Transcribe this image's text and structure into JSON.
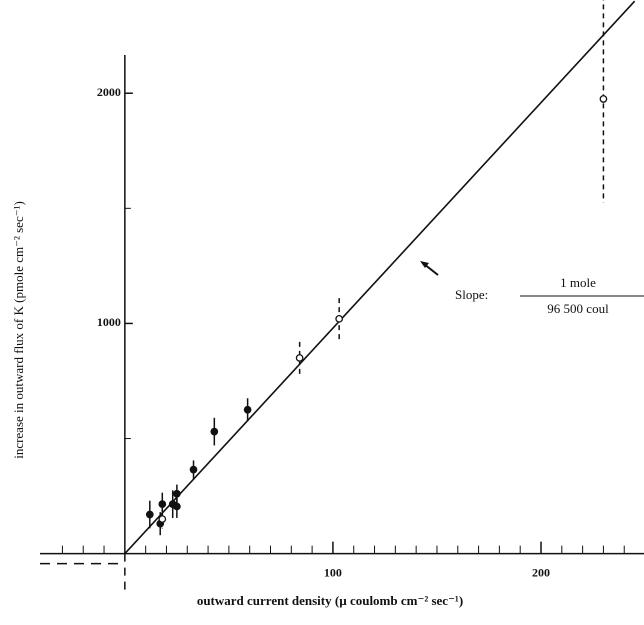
{
  "chart_data": {
    "type": "scatter",
    "x_label": "outward current density (µ coulomb cm⁻² sec⁻¹)",
    "y_label": "increase in outward flux of K (pmole cm⁻² sec⁻¹)",
    "annotation": {
      "text": "Slope:",
      "numerator": "1 mole",
      "denominator": "96 500 coul"
    },
    "xlim": [
      -60,
      249.5
    ],
    "ylim": [
      -310,
      2405
    ],
    "xticks": [
      100,
      200
    ],
    "yticks": [
      1000,
      2000
    ],
    "xminor": [
      -30,
      -20,
      -10,
      10,
      20,
      30,
      40,
      50,
      60,
      70,
      80,
      90,
      110,
      120,
      130,
      140,
      150,
      160,
      170,
      180,
      190,
      210,
      220,
      230,
      240
    ],
    "yminor": [
      500,
      1500
    ],
    "line": {
      "x": [
        0,
        245
      ],
      "values": [
        0,
        2400
      ],
      "color": "#111"
    },
    "series": [
      {
        "marker": "filled",
        "color": "#111",
        "dashed_errors": false,
        "x": [
          12,
          17,
          18,
          23,
          25,
          25,
          33,
          43,
          59
        ],
        "values": [
          170,
          130,
          215,
          215,
          205,
          260,
          365,
          530,
          625
        ],
        "errors": [
          60,
          50,
          50,
          60,
          50,
          40,
          40,
          60,
          50
        ]
      },
      {
        "marker": "open",
        "color": "#111",
        "dashed_errors": true,
        "x": [
          18,
          84,
          103,
          230
        ],
        "values": [
          150,
          850,
          1020,
          1975
        ],
        "errors": [
          40,
          70,
          90,
          450
        ]
      }
    ]
  }
}
